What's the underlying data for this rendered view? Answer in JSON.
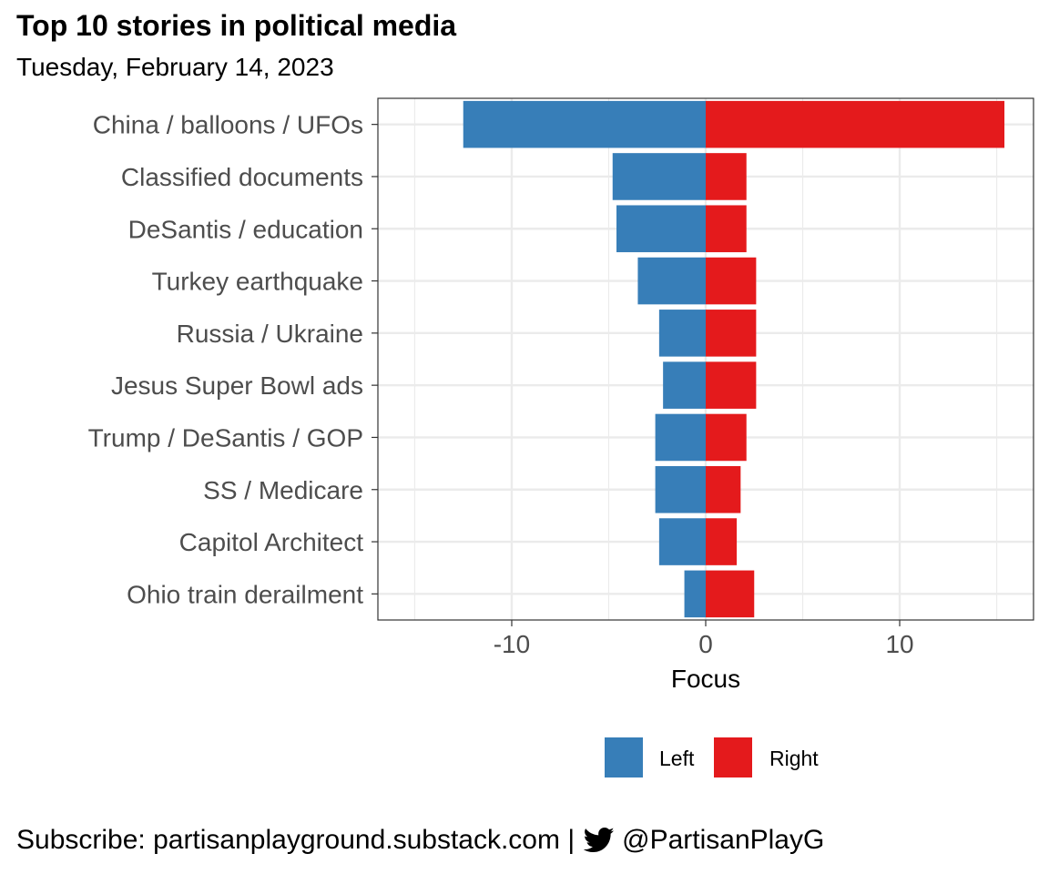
{
  "title": "Top 10 stories in political media",
  "subtitle": "Tuesday, February 14, 2023",
  "footer": {
    "subscribe_text": "Subscribe: partisanplayground.substack.com |",
    "handle": "@PartisanPlayG",
    "icon": "twitter-bird-icon"
  },
  "colors": {
    "left": "#377EB8",
    "right": "#E41A1C",
    "grid": "#EBEBEB",
    "axis_text": "#4D4D4D"
  },
  "chart_data": {
    "type": "bar",
    "orientation": "horizontal",
    "stacked": "diverging",
    "categories": [
      "China / balloons / UFOs",
      "Classified documents",
      "DeSantis / education",
      "Turkey earthquake",
      "Russia / Ukraine",
      "Jesus Super Bowl ads",
      "Trump / DeSantis / GOP",
      "SS / Medicare",
      "Capitol Architect",
      "Ohio train derailment"
    ],
    "series": [
      {
        "name": "Left",
        "values": [
          -12.5,
          -4.8,
          -4.6,
          -3.5,
          -2.4,
          -2.2,
          -2.6,
          -2.6,
          -2.4,
          -1.1
        ]
      },
      {
        "name": "Right",
        "values": [
          15.4,
          2.1,
          2.1,
          2.6,
          2.6,
          2.6,
          2.1,
          1.8,
          1.6,
          2.5
        ]
      }
    ],
    "xlabel": "Focus",
    "ylabel": "",
    "xlim": [
      -16.9,
      16.9
    ],
    "xticks": [
      -10,
      0,
      10
    ],
    "xtick_labels": [
      "-10",
      "0",
      "10"
    ],
    "legend_position": "bottom",
    "grid": true
  }
}
